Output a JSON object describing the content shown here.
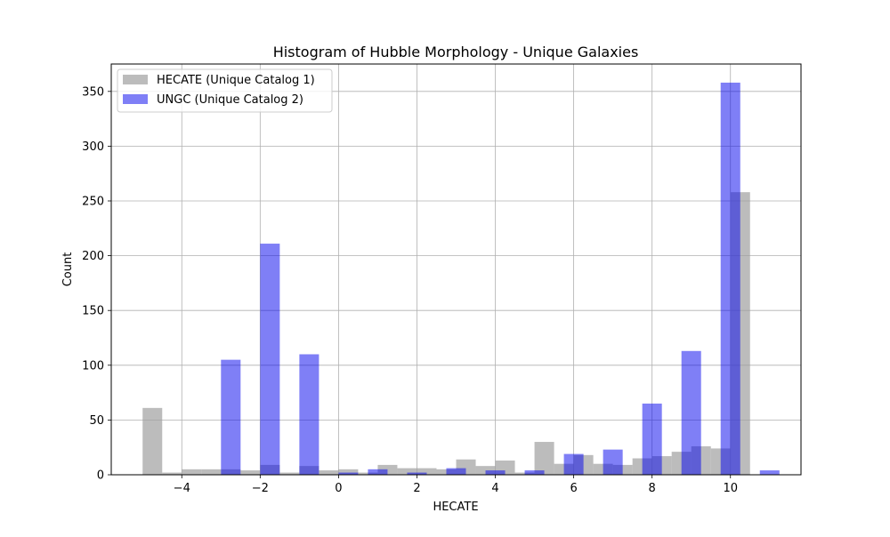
{
  "chart_data": {
    "type": "bar",
    "title": "Histogram of Hubble Morphology - Unique Galaxies",
    "xlabel": "HECATE",
    "ylabel": "Count",
    "xlim": [
      -5.8,
      11.8
    ],
    "ylim": [
      0,
      375
    ],
    "xticks": [
      -4,
      -2,
      0,
      2,
      4,
      6,
      8,
      10
    ],
    "yticks": [
      0,
      50,
      100,
      150,
      200,
      250,
      300,
      350
    ],
    "grid": true,
    "legend_position": "top-left",
    "series": [
      {
        "name": "HECATE (Unique Catalog 1)",
        "color": "#a0a0a0",
        "opacity": 0.7,
        "bins": [
          {
            "x0": -5.0,
            "x1": -4.5,
            "value": 61
          },
          {
            "x0": -4.5,
            "x1": -4.0,
            "value": 2
          },
          {
            "x0": -4.0,
            "x1": -3.5,
            "value": 5
          },
          {
            "x0": -3.5,
            "x1": -3.0,
            "value": 5
          },
          {
            "x0": -3.0,
            "x1": -2.5,
            "value": 5
          },
          {
            "x0": -2.5,
            "x1": -2.0,
            "value": 4
          },
          {
            "x0": -2.0,
            "x1": -1.5,
            "value": 9
          },
          {
            "x0": -1.5,
            "x1": -1.0,
            "value": 2
          },
          {
            "x0": -1.0,
            "x1": -0.5,
            "value": 8
          },
          {
            "x0": -0.5,
            "x1": 0.0,
            "value": 4
          },
          {
            "x0": 0.0,
            "x1": 0.5,
            "value": 5
          },
          {
            "x0": 0.5,
            "x1": 1.0,
            "value": 2
          },
          {
            "x0": 1.0,
            "x1": 1.5,
            "value": 9
          },
          {
            "x0": 1.5,
            "x1": 2.0,
            "value": 6
          },
          {
            "x0": 2.0,
            "x1": 2.5,
            "value": 6
          },
          {
            "x0": 2.5,
            "x1": 3.0,
            "value": 5
          },
          {
            "x0": 3.0,
            "x1": 3.5,
            "value": 14
          },
          {
            "x0": 3.5,
            "x1": 4.0,
            "value": 8
          },
          {
            "x0": 4.0,
            "x1": 4.5,
            "value": 13
          },
          {
            "x0": 4.5,
            "x1": 5.0,
            "value": 2
          },
          {
            "x0": 5.0,
            "x1": 5.5,
            "value": 30
          },
          {
            "x0": 5.5,
            "x1": 6.0,
            "value": 10
          },
          {
            "x0": 6.0,
            "x1": 6.5,
            "value": 18
          },
          {
            "x0": 6.5,
            "x1": 7.0,
            "value": 10
          },
          {
            "x0": 7.0,
            "x1": 7.5,
            "value": 9
          },
          {
            "x0": 7.5,
            "x1": 8.0,
            "value": 15
          },
          {
            "x0": 8.0,
            "x1": 8.5,
            "value": 17
          },
          {
            "x0": 8.5,
            "x1": 9.0,
            "value": 21
          },
          {
            "x0": 9.0,
            "x1": 9.5,
            "value": 26
          },
          {
            "x0": 9.5,
            "x1": 10.0,
            "value": 24
          },
          {
            "x0": 10.0,
            "x1": 10.5,
            "value": 258
          }
        ]
      },
      {
        "name": "UNGC (Unique Catalog 2)",
        "color": "#0000ee",
        "opacity": 0.5,
        "bins": [
          {
            "x0": -3.0,
            "x1": -2.5,
            "value": 105
          },
          {
            "x0": -2.0,
            "x1": -1.5,
            "value": 211
          },
          {
            "x0": -1.0,
            "x1": -0.5,
            "value": 110
          },
          {
            "x0": 0.0,
            "x1": 0.5,
            "value": 2
          },
          {
            "x0": 0.75,
            "x1": 1.25,
            "value": 5
          },
          {
            "x0": 1.75,
            "x1": 2.25,
            "value": 2
          },
          {
            "x0": 2.75,
            "x1": 3.25,
            "value": 6
          },
          {
            "x0": 3.75,
            "x1": 4.25,
            "value": 4
          },
          {
            "x0": 4.75,
            "x1": 5.25,
            "value": 4
          },
          {
            "x0": 5.75,
            "x1": 6.25,
            "value": 19
          },
          {
            "x0": 6.75,
            "x1": 7.25,
            "value": 23
          },
          {
            "x0": 7.75,
            "x1": 8.25,
            "value": 65
          },
          {
            "x0": 8.75,
            "x1": 9.25,
            "value": 113
          },
          {
            "x0": 9.75,
            "x1": 10.25,
            "value": 358
          },
          {
            "x0": 10.75,
            "x1": 11.25,
            "value": 4
          }
        ]
      }
    ]
  }
}
